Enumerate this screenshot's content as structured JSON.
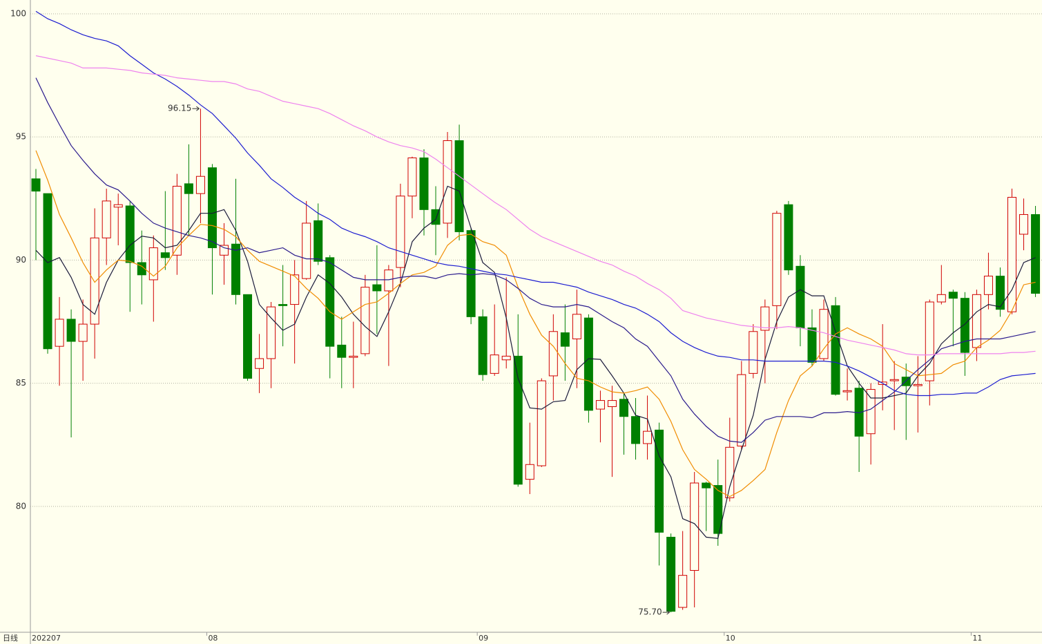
{
  "chart_data": {
    "type": "candlestick",
    "period_label": "日线",
    "categories": [
      "202207",
      null,
      null,
      null,
      null,
      null,
      null,
      null,
      null,
      null,
      null,
      null,
      null,
      null,
      null,
      "08",
      null,
      null,
      null,
      null,
      null,
      null,
      null,
      null,
      null,
      null,
      null,
      null,
      null,
      null,
      null,
      null,
      null,
      null,
      null,
      null,
      null,
      null,
      "09",
      null,
      null,
      null,
      null,
      null,
      null,
      null,
      null,
      null,
      null,
      null,
      null,
      null,
      null,
      null,
      null,
      null,
      null,
      null,
      null,
      "10",
      null,
      null,
      null,
      null,
      null,
      null,
      null,
      null,
      null,
      null,
      null,
      null,
      null,
      null,
      null,
      null,
      null,
      null,
      null,
      null,
      "11",
      null,
      null,
      null,
      null,
      null
    ],
    "open": [
      93.3,
      92.7,
      86.5,
      87.6,
      86.7,
      87.4,
      90.9,
      92.15,
      92.2,
      89.9,
      89.2,
      90.3,
      90.2,
      93.1,
      92.7,
      93.75,
      90.2,
      90.65,
      88.6,
      85.6,
      86.0,
      88.2,
      88.2,
      89.25,
      91.6,
      90.1,
      86.55,
      86.05,
      86.2,
      89.0,
      88.75,
      89.7,
      92.6,
      94.15,
      92.05,
      91.5,
      94.85,
      91.2,
      87.7,
      85.4,
      85.95,
      86.1,
      81.1,
      81.65,
      85.3,
      87.05,
      86.8,
      87.65,
      83.95,
      84.05,
      84.35,
      83.65,
      82.55,
      83.1,
      78.75,
      75.9,
      77.4,
      80.95,
      80.85,
      80.35,
      82.45,
      85.4,
      87.15,
      88.15,
      92.25,
      89.75,
      87.25,
      86.0,
      88.15,
      84.65,
      84.8,
      82.95,
      84.95,
      85.1,
      85.25,
      84.9,
      85.1,
      88.3,
      88.7,
      88.45,
      86.45,
      88.6,
      89.35,
      87.9,
      91.05,
      91.85
    ],
    "high": [
      93.7,
      92.7,
      88.5,
      88.0,
      88.4,
      92.1,
      92.9,
      92.7,
      92.4,
      91.2,
      91.0,
      92.8,
      93.5,
      94.7,
      96.15,
      93.9,
      91.5,
      93.3,
      88.6,
      87.0,
      88.3,
      89.8,
      90.0,
      92.4,
      92.3,
      90.2,
      87.7,
      87.5,
      89.4,
      90.6,
      89.8,
      93.1,
      94.2,
      94.5,
      93.0,
      95.2,
      95.5,
      91.3,
      88.0,
      88.2,
      89.3,
      87.8,
      83.4,
      85.2,
      87.8,
      88.2,
      88.8,
      87.8,
      84.7,
      84.9,
      84.6,
      84.4,
      84.5,
      83.4,
      78.9,
      79.0,
      81.4,
      81.0,
      81.9,
      83.6,
      85.9,
      87.4,
      88.4,
      92.0,
      92.4,
      90.2,
      88.0,
      88.4,
      88.5,
      85.6,
      85.1,
      85.0,
      87.4,
      85.9,
      85.8,
      86.1,
      88.4,
      89.8,
      88.8,
      88.7,
      88.8,
      90.3,
      89.7,
      92.9,
      92.5,
      92.2
    ],
    "low": [
      90.0,
      86.2,
      84.9,
      82.8,
      85.1,
      86.0,
      89.8,
      90.6,
      87.9,
      88.2,
      87.5,
      89.6,
      89.4,
      91.0,
      91.5,
      88.6,
      89.0,
      88.2,
      85.1,
      84.6,
      84.8,
      86.5,
      85.8,
      89.2,
      89.8,
      85.2,
      84.8,
      84.8,
      86.1,
      87.0,
      85.7,
      88.9,
      91.7,
      91.0,
      90.2,
      90.9,
      90.8,
      87.4,
      85.1,
      85.3,
      85.6,
      80.8,
      80.5,
      81.6,
      84.3,
      85.1,
      84.8,
      83.4,
      82.6,
      81.2,
      82.1,
      81.9,
      81.9,
      77.6,
      75.7,
      75.8,
      75.9,
      79.0,
      78.4,
      80.2,
      82.3,
      85.2,
      85.0,
      87.2,
      89.4,
      86.5,
      85.7,
      85.9,
      84.5,
      84.3,
      81.4,
      81.7,
      83.9,
      83.1,
      82.7,
      83.0,
      84.1,
      88.2,
      86.5,
      85.3,
      85.9,
      88.0,
      87.7,
      87.8,
      90.4,
      88.5
    ],
    "close": [
      92.8,
      86.4,
      87.6,
      86.7,
      87.4,
      90.9,
      92.4,
      92.25,
      89.9,
      89.4,
      90.5,
      90.1,
      93.0,
      92.7,
      93.4,
      90.5,
      90.6,
      88.6,
      85.2,
      86.0,
      88.1,
      88.15,
      89.4,
      91.5,
      89.95,
      86.5,
      86.05,
      86.1,
      88.9,
      88.75,
      89.6,
      92.6,
      94.15,
      92.05,
      91.45,
      94.85,
      91.15,
      87.7,
      85.35,
      86.15,
      86.1,
      80.9,
      81.7,
      85.1,
      87.1,
      86.5,
      87.8,
      83.9,
      84.3,
      84.3,
      83.65,
      82.55,
      83.05,
      78.95,
      75.74,
      77.2,
      80.95,
      80.75,
      78.9,
      82.4,
      85.35,
      87.1,
      88.1,
      91.9,
      89.6,
      87.25,
      85.85,
      88.0,
      84.55,
      84.7,
      82.85,
      84.75,
      85.05,
      85.15,
      84.9,
      84.95,
      88.3,
      88.6,
      88.45,
      86.25,
      88.6,
      89.35,
      88.0,
      92.55,
      91.85,
      88.65
    ],
    "up_color": "#d00000",
    "down_color": "#008000",
    "series": [
      {
        "color": "#1a1a3a",
        "values": [
          90.4,
          89.9,
          90.1,
          89.3,
          88.2,
          87.8,
          89.1,
          90.0,
          90.6,
          90.97,
          90.9,
          90.5,
          90.6,
          91.2,
          91.9,
          91.9,
          92.05,
          91.2,
          89.95,
          88.2,
          87.65,
          87.15,
          87.4,
          88.5,
          89.4,
          89.05,
          88.5,
          87.8,
          87.3,
          86.9,
          87.9,
          89.05,
          90.75,
          91.3,
          91.65,
          93.0,
          92.8,
          91.3,
          89.9,
          89.5,
          87.65,
          85.2,
          84.0,
          83.95,
          84.25,
          84.3,
          85.55,
          86.0,
          85.97,
          85.3,
          84.6,
          83.7,
          83.55,
          82.05,
          81.2,
          79.5,
          79.3,
          78.75,
          78.7,
          80.8,
          82.3,
          83.7,
          85.97,
          87.5,
          88.5,
          88.8,
          88.55,
          88.55,
          87.1,
          85.7,
          85.0,
          84.4,
          84.4,
          84.5,
          84.6,
          85.3,
          85.8,
          86.6,
          87.05,
          87.4,
          87.9,
          88.2,
          88.1,
          88.8,
          89.9,
          90.1
        ]
      },
      {
        "color": "#f08c00",
        "values": [
          94.45,
          93.25,
          91.85,
          90.9,
          89.9,
          89.1,
          89.6,
          90.0,
          89.95,
          89.75,
          89.35,
          89.75,
          90.5,
          91.0,
          91.45,
          91.4,
          91.25,
          90.95,
          90.4,
          89.95,
          89.75,
          89.55,
          89.35,
          88.85,
          88.45,
          87.9,
          87.6,
          87.9,
          88.2,
          88.3,
          88.65,
          89.05,
          89.4,
          89.5,
          89.75,
          90.6,
          91.0,
          91.05,
          90.75,
          90.6,
          90.2,
          88.9,
          87.8,
          86.95,
          86.5,
          85.8,
          85.2,
          85.1,
          84.85,
          84.65,
          84.6,
          84.7,
          84.85,
          84.35,
          83.45,
          82.3,
          81.5,
          81.1,
          80.65,
          80.4,
          80.65,
          81.05,
          81.5,
          83.0,
          84.3,
          85.3,
          85.7,
          86.4,
          87.0,
          87.25,
          87.0,
          86.8,
          86.5,
          85.8,
          85.55,
          85.3,
          85.35,
          85.4,
          85.75,
          85.9,
          86.45,
          86.75,
          87.15,
          87.95,
          89.0,
          89.1
        ]
      },
      {
        "color": "#2a1a8c",
        "values": [
          97.4,
          96.4,
          95.5,
          94.65,
          94.05,
          93.5,
          93.05,
          92.85,
          92.4,
          91.9,
          91.5,
          91.3,
          91.15,
          91.0,
          90.9,
          90.75,
          90.5,
          90.4,
          90.5,
          90.3,
          90.4,
          90.5,
          90.2,
          90.05,
          90.05,
          89.9,
          89.6,
          89.3,
          89.2,
          89.2,
          89.2,
          89.3,
          89.35,
          89.35,
          89.25,
          89.4,
          89.45,
          89.4,
          89.45,
          89.4,
          89.2,
          88.85,
          88.45,
          88.2,
          88.1,
          88.1,
          88.2,
          88.1,
          87.8,
          87.5,
          87.25,
          86.8,
          86.5,
          85.9,
          85.3,
          84.35,
          83.75,
          83.25,
          82.85,
          82.65,
          82.6,
          83.0,
          83.5,
          83.65,
          83.65,
          83.65,
          83.6,
          83.8,
          83.8,
          83.85,
          83.8,
          83.95,
          84.3,
          84.65,
          85.1,
          85.55,
          85.95,
          86.4,
          86.55,
          86.7,
          86.8,
          86.8,
          86.8,
          86.9,
          87.0,
          87.1
        ]
      },
      {
        "color": "#1c1cd0",
        "values": [
          100.1,
          99.8,
          99.6,
          99.35,
          99.15,
          99.0,
          98.9,
          98.7,
          98.3,
          97.95,
          97.6,
          97.35,
          97.05,
          96.7,
          96.3,
          95.95,
          95.45,
          94.95,
          94.35,
          93.85,
          93.3,
          92.95,
          92.55,
          92.25,
          91.9,
          91.65,
          91.3,
          91.1,
          90.95,
          90.75,
          90.5,
          90.35,
          90.2,
          90.05,
          89.9,
          89.8,
          89.75,
          89.65,
          89.55,
          89.45,
          89.4,
          89.3,
          89.2,
          89.1,
          89.1,
          89.0,
          88.9,
          88.7,
          88.55,
          88.4,
          88.2,
          88.05,
          87.8,
          87.5,
          87.05,
          86.7,
          86.45,
          86.25,
          86.1,
          86.05,
          85.95,
          85.95,
          85.9,
          85.9,
          85.9,
          85.9,
          85.9,
          85.9,
          85.85,
          85.7,
          85.5,
          85.25,
          85.0,
          84.7,
          84.55,
          84.5,
          84.5,
          84.55,
          84.55,
          84.6,
          84.6,
          84.85,
          85.15,
          85.3,
          85.35,
          85.4
        ]
      },
      {
        "color": "#ee82ee",
        "values": [
          98.3,
          98.2,
          98.1,
          98.0,
          97.8,
          97.8,
          97.8,
          97.75,
          97.7,
          97.6,
          97.55,
          97.5,
          97.4,
          97.35,
          97.3,
          97.25,
          97.25,
          97.15,
          96.95,
          96.85,
          96.65,
          96.45,
          96.35,
          96.25,
          96.15,
          95.95,
          95.7,
          95.45,
          95.25,
          95.0,
          94.8,
          94.65,
          94.55,
          94.4,
          94.1,
          93.75,
          93.4,
          93.05,
          92.7,
          92.35,
          92.05,
          91.65,
          91.25,
          90.95,
          90.75,
          90.55,
          90.35,
          90.15,
          89.95,
          89.8,
          89.55,
          89.35,
          89.05,
          88.8,
          88.45,
          87.95,
          87.8,
          87.65,
          87.55,
          87.45,
          87.35,
          87.3,
          87.25,
          87.25,
          87.3,
          87.25,
          87.15,
          87.05,
          86.9,
          86.75,
          86.65,
          86.55,
          86.45,
          86.35,
          86.2,
          86.15,
          86.15,
          86.2,
          86.2,
          86.2,
          86.2,
          86.2,
          86.2,
          86.25,
          86.25,
          86.3
        ]
      }
    ],
    "annotations": [
      96.15,
      {
        "value": 75.7,
        "label": "75.70"
      }
    ],
    "ylim": [
      74.89,
      100.56
    ],
    "yticks": [
      80,
      85,
      90,
      95,
      100
    ],
    "grid": true
  }
}
